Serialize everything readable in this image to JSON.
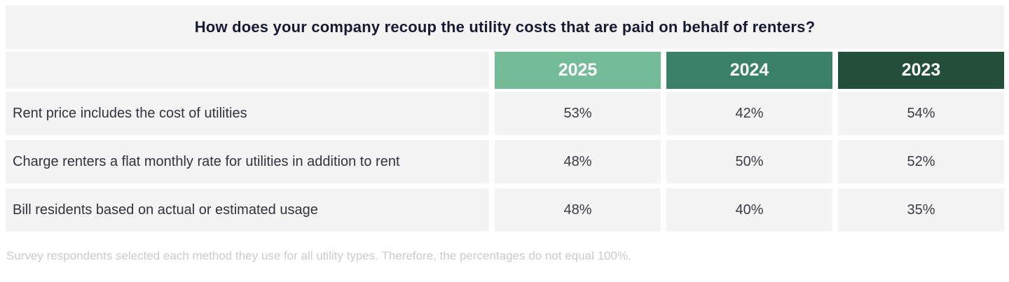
{
  "chart_data": {
    "type": "table",
    "title": "How does your company recoup the utility costs that are paid on behalf of renters?",
    "columns": [
      {
        "label": "2025",
        "color": "#74bc97"
      },
      {
        "label": "2024",
        "color": "#3b8169"
      },
      {
        "label": "2023",
        "color": "#224e3a"
      }
    ],
    "rows": [
      {
        "label": "Rent price includes the cost of utilities",
        "values": [
          "53%",
          "42%",
          "54%"
        ]
      },
      {
        "label": "Charge renters a flat monthly rate for utilities in addition to rent",
        "values": [
          "48%",
          "50%",
          "52%"
        ]
      },
      {
        "label": "Bill residents based on actual or estimated usage",
        "values": [
          "48%",
          "40%",
          "35%"
        ]
      }
    ],
    "series": [
      {
        "name": "2025",
        "values": [
          53,
          48,
          48
        ]
      },
      {
        "name": "2024",
        "values": [
          42,
          50,
          40
        ]
      },
      {
        "name": "2023",
        "values": [
          54,
          52,
          35
        ]
      }
    ],
    "footnote": "Survey respondents selected each method they use for all utility types. Therefore, the percentages do not equal 100%."
  },
  "colors": {
    "page_background": "#ffffff",
    "cell_background": "#f4f4f5",
    "title_text": "#181a33",
    "body_text": "#31323c",
    "header_text": "#ffffff",
    "footnote_text": "#cccbcc",
    "col_2025": "#74bc97",
    "col_2024": "#3b8169",
    "col_2023": "#224e3a"
  }
}
